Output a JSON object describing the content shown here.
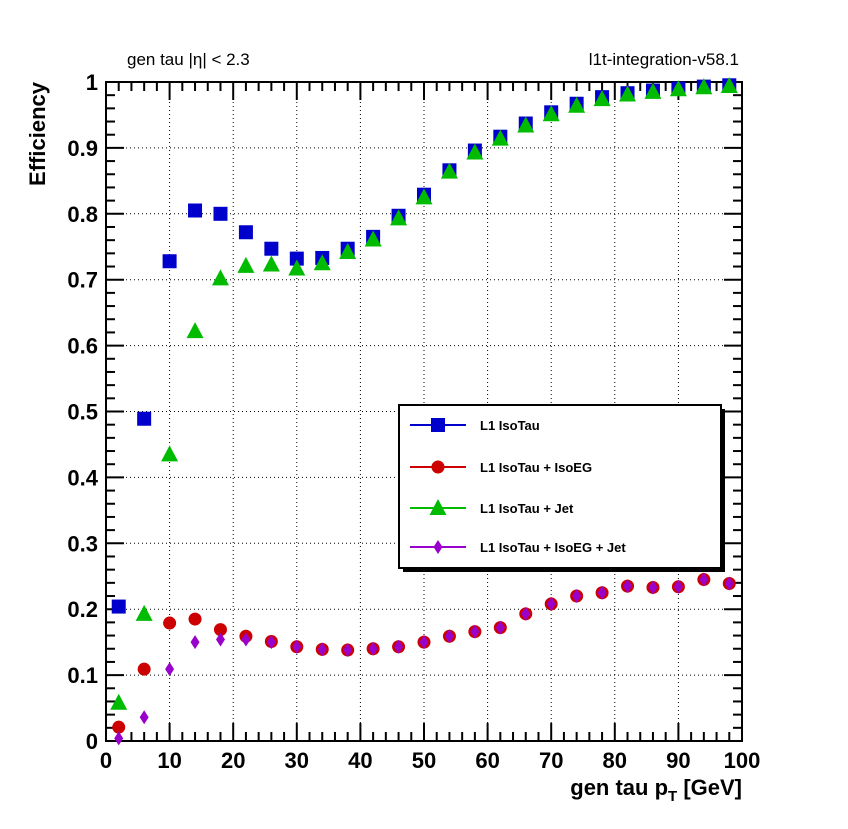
{
  "header": {
    "left_text": "gen tau |η| < 2.3",
    "right_text": "l1t-integration-v58.1"
  },
  "chart_data": {
    "type": "scatter",
    "xlabel_main": "gen tau p",
    "xlabel_sub": "T",
    "xlabel_unit": " [GeV]",
    "ylabel": "Efficiency",
    "xlim": [
      0,
      100
    ],
    "ylim": [
      0,
      1
    ],
    "x_ticks": [
      0,
      10,
      20,
      30,
      40,
      50,
      60,
      70,
      80,
      90,
      100
    ],
    "y_ticks": [
      "0",
      "0.1",
      "0.2",
      "0.3",
      "0.4",
      "0.5",
      "0.6",
      "0.7",
      "0.8",
      "0.9",
      "1"
    ],
    "grid": true,
    "legend_position": "center-right",
    "x": [
      2,
      6,
      10,
      14,
      18,
      22,
      26,
      30,
      34,
      38,
      42,
      46,
      50,
      54,
      58,
      62,
      66,
      70,
      74,
      78,
      82,
      86,
      90,
      94,
      98
    ],
    "series": [
      {
        "name": "L1 IsoTau",
        "marker": "square",
        "color": "#0000cc",
        "values": [
          0.204,
          0.489,
          0.728,
          0.805,
          0.8,
          0.772,
          0.747,
          0.732,
          0.733,
          0.747,
          0.765,
          0.797,
          0.829,
          0.866,
          0.896,
          0.917,
          0.937,
          0.954,
          0.967,
          0.977,
          0.983,
          0.987,
          0.99,
          0.993,
          0.995
        ]
      },
      {
        "name": "L1 IsoTau + IsoEG",
        "marker": "circle",
        "color": "#cc0000",
        "values": [
          0.021,
          0.109,
          0.179,
          0.185,
          0.169,
          0.159,
          0.151,
          0.143,
          0.139,
          0.138,
          0.14,
          0.143,
          0.15,
          0.159,
          0.166,
          0.172,
          0.193,
          0.208,
          0.22,
          0.225,
          0.235,
          0.233,
          0.234,
          0.245,
          0.239
        ]
      },
      {
        "name": "L1 IsoTau + Jet",
        "marker": "triangle",
        "color": "#00bb00",
        "values": [
          0.058,
          0.193,
          0.435,
          0.622,
          0.702,
          0.721,
          0.723,
          0.717,
          0.725,
          0.742,
          0.761,
          0.793,
          0.825,
          0.864,
          0.893,
          0.914,
          0.934,
          0.951,
          0.964,
          0.974,
          0.981,
          0.985,
          0.989,
          0.992,
          0.994
        ]
      },
      {
        "name": "L1 IsoTau + IsoEG + Jet",
        "marker": "diamond",
        "color": "#9900cc",
        "values": [
          0.004,
          0.036,
          0.109,
          0.15,
          0.154,
          0.154,
          0.15,
          0.143,
          0.139,
          0.138,
          0.14,
          0.143,
          0.15,
          0.159,
          0.166,
          0.172,
          0.193,
          0.208,
          0.22,
          0.225,
          0.235,
          0.233,
          0.234,
          0.245,
          0.239
        ]
      }
    ]
  }
}
